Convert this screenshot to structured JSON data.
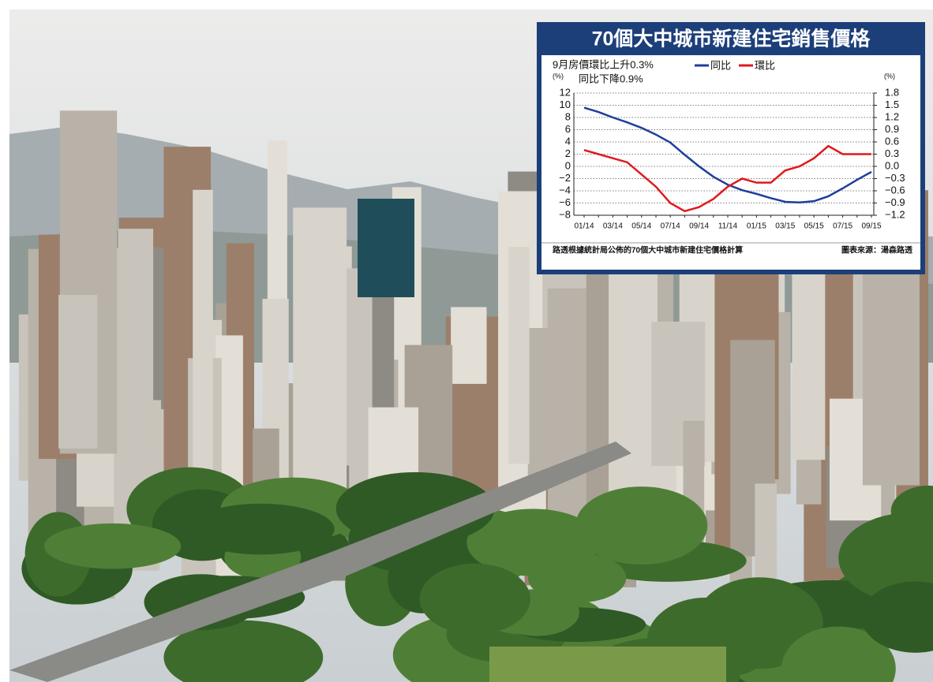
{
  "chart_data": {
    "type": "line",
    "title": "70個大中城市新建住宅銷售價格",
    "annotations": [
      "9月房價環比上升0.3%",
      "同比下降0.9%"
    ],
    "y_label": "(%)",
    "y2_label": "(%)",
    "footnote": "路透根據統計局公佈的70個大中城市新建住宅價格計算",
    "source": "圖表來源：湯森路透",
    "categories": [
      "01/14",
      null,
      "03/14",
      null,
      "05/14",
      null,
      "07/14",
      null,
      "09/14",
      null,
      "11/14",
      null,
      "01/15",
      null,
      "03/15",
      null,
      "05/15",
      null,
      "07/15",
      null,
      "09/15"
    ],
    "series": [
      {
        "name": "同比",
        "color": "#1f3f9a",
        "values": [
          9.6,
          8.9,
          8.0,
          7.2,
          6.3,
          5.2,
          3.9,
          1.9,
          0.0,
          -1.7,
          -3.0,
          -3.9,
          -4.5,
          -5.2,
          -5.8,
          -5.9,
          -5.7,
          -4.9,
          -3.6,
          -2.2,
          -0.9
        ]
      },
      {
        "name": "環比",
        "color": "#e0191e",
        "axis": "y2",
        "values": [
          0.4,
          0.3,
          0.2,
          0.1,
          -0.2,
          -0.5,
          -0.9,
          -1.1,
          -1.0,
          -0.8,
          -0.5,
          -0.3,
          -0.4,
          -0.4,
          -0.1,
          0.0,
          0.2,
          0.5,
          0.3,
          0.3,
          0.3
        ]
      }
    ],
    "ylim": [
      -8,
      12
    ],
    "yticks": [
      {
        "value": -8,
        "label": "−8"
      },
      {
        "value": -6,
        "label": "−6"
      },
      {
        "value": -4,
        "label": "−4"
      },
      {
        "value": -2,
        "label": "−2"
      },
      0,
      2,
      4,
      6,
      8,
      10,
      12
    ],
    "y2lim": [
      -1.2,
      1.8
    ],
    "y2ticks": [
      {
        "value": -1.2,
        "label": "−1.2"
      },
      {
        "value": -0.9,
        "label": "−0.9"
      },
      {
        "value": -0.6,
        "label": "−0.6"
      },
      {
        "value": -0.3,
        "label": "−0.3"
      },
      {
        "value": 0,
        "label": "0.0"
      },
      0.3,
      0.6,
      0.9,
      1.2,
      1.5,
      1.8
    ],
    "grid": true
  }
}
